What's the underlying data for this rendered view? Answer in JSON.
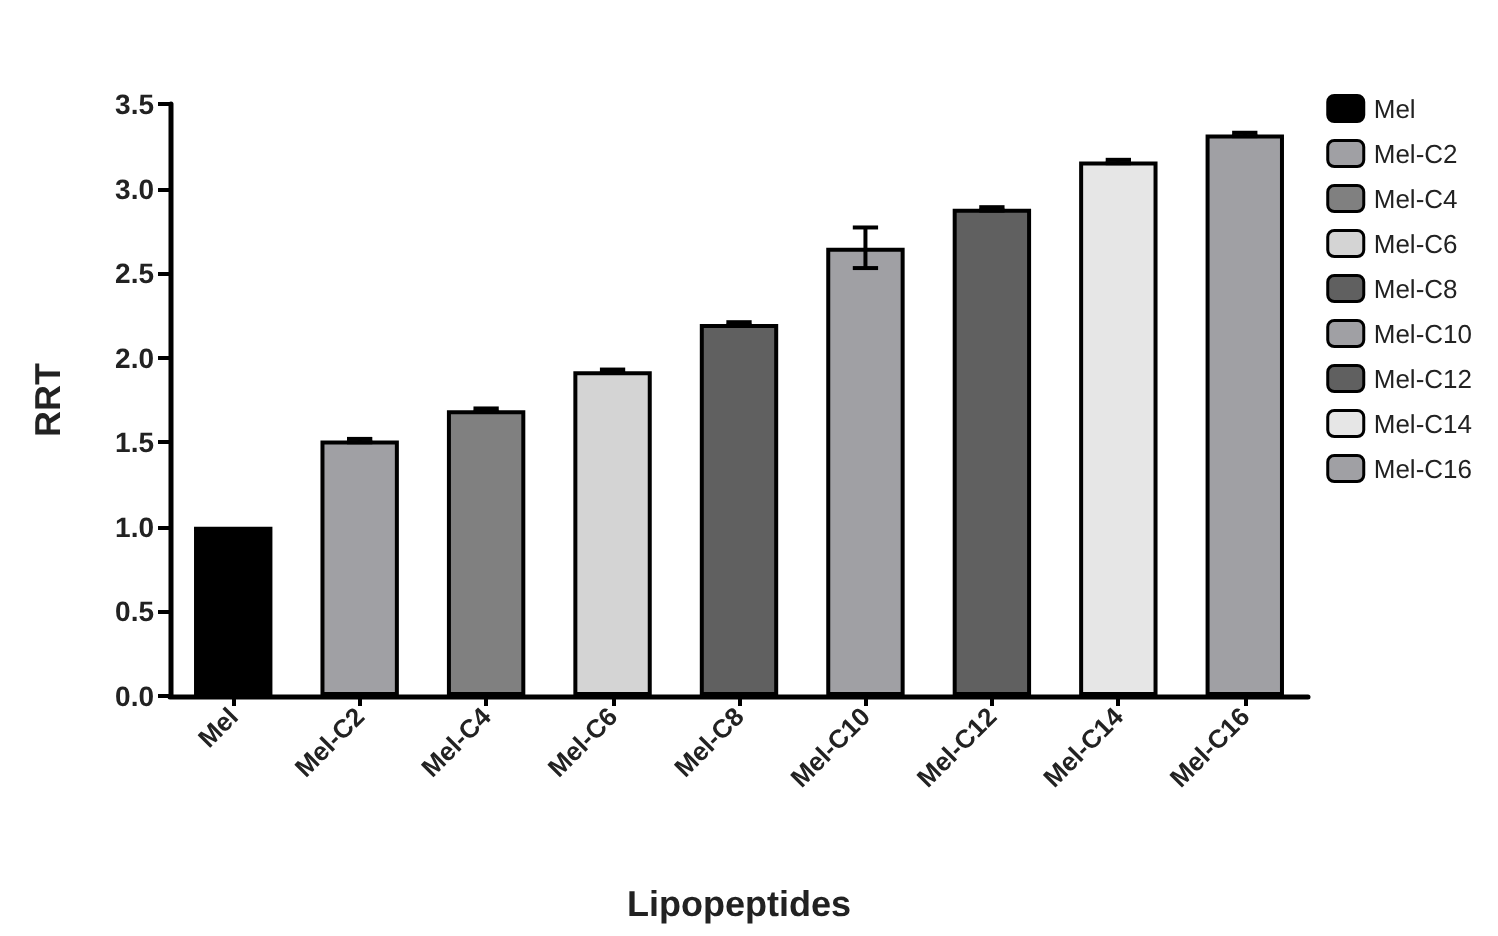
{
  "chart_data": {
    "type": "bar",
    "xlabel": "Lipopeptides",
    "ylabel": "RRT",
    "categories": [
      "Mel",
      "Mel-C2",
      "Mel-C4",
      "Mel-C6",
      "Mel-C8",
      "Mel-C10",
      "Mel-C12",
      "Mel-C14",
      "Mel-C16"
    ],
    "series": [
      {
        "name": "Mel",
        "color": "#000000",
        "values": [
          1.0,
          null,
          null,
          null,
          null,
          null,
          null,
          null,
          null
        ],
        "errors": [
          null,
          null,
          null,
          null,
          null,
          null,
          null,
          null,
          null
        ]
      },
      {
        "name": "Mel-C2",
        "color": "#a0a0a4",
        "values": [
          null,
          1.51,
          null,
          null,
          null,
          null,
          null,
          null,
          null
        ],
        "errors": [
          null,
          0.01,
          null,
          null,
          null,
          null,
          null,
          null,
          null
        ]
      },
      {
        "name": "Mel-C4",
        "color": "#808080",
        "values": [
          null,
          null,
          1.69,
          null,
          null,
          null,
          null,
          null,
          null
        ],
        "errors": [
          null,
          null,
          0.01,
          null,
          null,
          null,
          null,
          null,
          null
        ]
      },
      {
        "name": "Mel-C6",
        "color": "#d4d4d4",
        "values": [
          null,
          null,
          null,
          1.92,
          null,
          null,
          null,
          null,
          null
        ],
        "errors": [
          null,
          null,
          null,
          0.01,
          null,
          null,
          null,
          null,
          null
        ]
      },
      {
        "name": "Mel-C8",
        "color": "#606060",
        "values": [
          null,
          null,
          null,
          null,
          2.2,
          null,
          null,
          null,
          null
        ],
        "errors": [
          null,
          null,
          null,
          null,
          0.01,
          null,
          null,
          null,
          null
        ]
      },
      {
        "name": "Mel-C10",
        "color": "#a0a0a4",
        "values": [
          null,
          null,
          null,
          null,
          null,
          2.65,
          null,
          null,
          null
        ],
        "errors": [
          null,
          null,
          null,
          null,
          null,
          0.12,
          null,
          null,
          null
        ]
      },
      {
        "name": "Mel-C12",
        "color": "#606060",
        "values": [
          null,
          null,
          null,
          null,
          null,
          null,
          2.88,
          null,
          null
        ],
        "errors": [
          null,
          null,
          null,
          null,
          null,
          null,
          0.01,
          null,
          null
        ]
      },
      {
        "name": "Mel-C14",
        "color": "#e6e6e6",
        "values": [
          null,
          null,
          null,
          null,
          null,
          null,
          null,
          3.16,
          null
        ],
        "errors": [
          null,
          null,
          null,
          null,
          null,
          null,
          null,
          0.01,
          null
        ]
      },
      {
        "name": "Mel-C16",
        "color": "#a0a0a4",
        "values": [
          null,
          null,
          null,
          null,
          null,
          null,
          null,
          null,
          3.32
        ],
        "errors": [
          null,
          null,
          null,
          null,
          null,
          null,
          null,
          null,
          0.01
        ]
      }
    ],
    "ylim": [
      0,
      3.5
    ],
    "yticks": [
      {
        "value": 0,
        "label": "0.0"
      },
      0.5,
      {
        "value": 1,
        "label": "1.0"
      },
      1.5,
      {
        "value": 2,
        "label": "2.0"
      },
      2.5,
      {
        "value": 3,
        "label": "3.0"
      },
      3.5
    ],
    "grid": false,
    "legend": "right"
  }
}
